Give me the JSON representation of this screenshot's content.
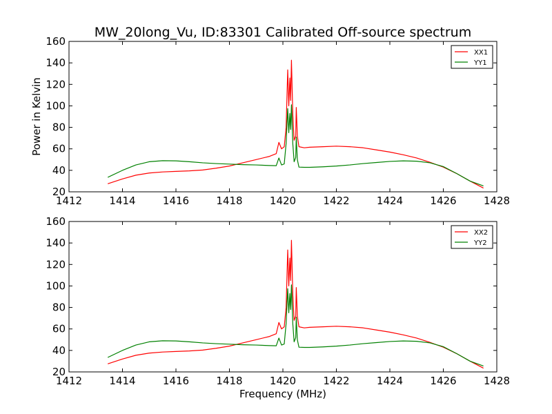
{
  "figure": {
    "title": "MW_20long_Vu, ID:83301 Calibrated Off-source spectrum"
  },
  "chart_data": [
    {
      "type": "line",
      "title": "MW_20long_Vu, ID:83301 Calibrated Off-source spectrum",
      "xlabel": "",
      "ylabel": "Power in Kelvin",
      "xlim": [
        1412,
        1428
      ],
      "ylim": [
        20,
        160
      ],
      "xticks": [
        1412,
        1414,
        1416,
        1418,
        1420,
        1422,
        1424,
        1426,
        1428
      ],
      "yticks": [
        20,
        40,
        60,
        80,
        100,
        120,
        140,
        160
      ],
      "grid": false,
      "legend": "top-right",
      "series": [
        {
          "name": "XX1",
          "color": "#ff0000",
          "points": [
            [
              1413.45,
              27.5
            ],
            [
              1414,
              32
            ],
            [
              1414.5,
              35.5
            ],
            [
              1415,
              37.5
            ],
            [
              1415.5,
              38.5
            ],
            [
              1416,
              39
            ],
            [
              1416.5,
              39.5
            ],
            [
              1417,
              40.3
            ],
            [
              1417.5,
              42
            ],
            [
              1418,
              44
            ],
            [
              1418.5,
              47
            ],
            [
              1419,
              50
            ],
            [
              1419.5,
              53
            ],
            [
              1419.75,
              55.5
            ],
            [
              1419.85,
              66
            ],
            [
              1419.95,
              60
            ],
            [
              1420.05,
              62
            ],
            [
              1420.12,
              80
            ],
            [
              1420.18,
              133.5
            ],
            [
              1420.22,
              100
            ],
            [
              1420.26,
              126
            ],
            [
              1420.29,
              105
            ],
            [
              1420.32,
              142.5
            ],
            [
              1420.37,
              92
            ],
            [
              1420.42,
              68
            ],
            [
              1420.48,
              72
            ],
            [
              1420.5,
              98.5
            ],
            [
              1420.54,
              72
            ],
            [
              1420.6,
              62
            ],
            [
              1420.8,
              61
            ],
            [
              1421,
              61.5
            ],
            [
              1421.5,
              62
            ],
            [
              1422,
              62.5
            ],
            [
              1422.5,
              62
            ],
            [
              1423,
              61
            ],
            [
              1423.5,
              59
            ],
            [
              1424,
              57
            ],
            [
              1424.5,
              54.5
            ],
            [
              1425,
              51.5
            ],
            [
              1425.5,
              47.5
            ],
            [
              1426,
              43
            ],
            [
              1426.5,
              37
            ],
            [
              1427,
              30
            ],
            [
              1427.5,
              23.5
            ]
          ]
        },
        {
          "name": "YY1",
          "color": "#008000",
          "points": [
            [
              1413.45,
              33.5
            ],
            [
              1414,
              40
            ],
            [
              1414.5,
              45
            ],
            [
              1415,
              48
            ],
            [
              1415.5,
              49
            ],
            [
              1416,
              48.8
            ],
            [
              1416.5,
              48
            ],
            [
              1417,
              47
            ],
            [
              1417.5,
              46.3
            ],
            [
              1418,
              45.8
            ],
            [
              1418.5,
              45.3
            ],
            [
              1419,
              45
            ],
            [
              1419.5,
              44.5
            ],
            [
              1419.75,
              44.3
            ],
            [
              1419.85,
              51.5
            ],
            [
              1419.95,
              45
            ],
            [
              1420.05,
              46
            ],
            [
              1420.12,
              65
            ],
            [
              1420.18,
              97.5
            ],
            [
              1420.22,
              75
            ],
            [
              1420.26,
              93
            ],
            [
              1420.29,
              78
            ],
            [
              1420.32,
              101
            ],
            [
              1420.37,
              65
            ],
            [
              1420.42,
              48
            ],
            [
              1420.48,
              52
            ],
            [
              1420.5,
              71
            ],
            [
              1420.54,
              50
            ],
            [
              1420.6,
              43
            ],
            [
              1420.8,
              42.8
            ],
            [
              1421,
              42.8
            ],
            [
              1421.5,
              43.3
            ],
            [
              1422,
              44
            ],
            [
              1422.5,
              45
            ],
            [
              1423,
              46.3
            ],
            [
              1423.5,
              47.3
            ],
            [
              1424,
              48.3
            ],
            [
              1424.5,
              48.8
            ],
            [
              1425,
              48.5
            ],
            [
              1425.5,
              47
            ],
            [
              1426,
              43.5
            ],
            [
              1426.5,
              37
            ],
            [
              1427,
              30
            ],
            [
              1427.5,
              25.5
            ]
          ]
        }
      ]
    },
    {
      "type": "line",
      "title": "",
      "xlabel": "Frequency (MHz)",
      "ylabel": "",
      "xlim": [
        1412,
        1428
      ],
      "ylim": [
        20,
        160
      ],
      "xticks": [
        1412,
        1414,
        1416,
        1418,
        1420,
        1422,
        1424,
        1426,
        1428
      ],
      "yticks": [
        20,
        40,
        60,
        80,
        100,
        120,
        140,
        160
      ],
      "grid": false,
      "legend": "top-right",
      "series": [
        {
          "name": "XX2",
          "color": "#ff0000",
          "points": [
            [
              1413.45,
              27.5
            ],
            [
              1414,
              32
            ],
            [
              1414.5,
              35.5
            ],
            [
              1415,
              37.5
            ],
            [
              1415.5,
              38.5
            ],
            [
              1416,
              39
            ],
            [
              1416.5,
              39.5
            ],
            [
              1417,
              40.3
            ],
            [
              1417.5,
              42
            ],
            [
              1418,
              44
            ],
            [
              1418.5,
              47
            ],
            [
              1419,
              50
            ],
            [
              1419.5,
              53
            ],
            [
              1419.75,
              55.5
            ],
            [
              1419.85,
              66
            ],
            [
              1419.95,
              60
            ],
            [
              1420.05,
              62
            ],
            [
              1420.12,
              80
            ],
            [
              1420.18,
              133.5
            ],
            [
              1420.22,
              100
            ],
            [
              1420.26,
              126
            ],
            [
              1420.29,
              105
            ],
            [
              1420.32,
              142.5
            ],
            [
              1420.37,
              92
            ],
            [
              1420.42,
              68
            ],
            [
              1420.48,
              72
            ],
            [
              1420.5,
              98.5
            ],
            [
              1420.54,
              72
            ],
            [
              1420.6,
              62
            ],
            [
              1420.8,
              61
            ],
            [
              1421,
              61.5
            ],
            [
              1421.5,
              62
            ],
            [
              1422,
              62.5
            ],
            [
              1422.5,
              62
            ],
            [
              1423,
              61
            ],
            [
              1423.5,
              59
            ],
            [
              1424,
              57
            ],
            [
              1424.5,
              54.5
            ],
            [
              1425,
              51.5
            ],
            [
              1425.5,
              47.5
            ],
            [
              1426,
              43
            ],
            [
              1426.5,
              37
            ],
            [
              1427,
              30
            ],
            [
              1427.5,
              23.5
            ]
          ]
        },
        {
          "name": "YY2",
          "color": "#008000",
          "points": [
            [
              1413.45,
              33.5
            ],
            [
              1414,
              40
            ],
            [
              1414.5,
              45
            ],
            [
              1415,
              48
            ],
            [
              1415.5,
              49
            ],
            [
              1416,
              48.8
            ],
            [
              1416.5,
              48
            ],
            [
              1417,
              47
            ],
            [
              1417.5,
              46.3
            ],
            [
              1418,
              45.8
            ],
            [
              1418.5,
              45.3
            ],
            [
              1419,
              45
            ],
            [
              1419.5,
              44.5
            ],
            [
              1419.75,
              44.3
            ],
            [
              1419.85,
              51.5
            ],
            [
              1419.95,
              45
            ],
            [
              1420.05,
              46
            ],
            [
              1420.12,
              65
            ],
            [
              1420.18,
              97.5
            ],
            [
              1420.22,
              75
            ],
            [
              1420.26,
              93
            ],
            [
              1420.29,
              78
            ],
            [
              1420.32,
              101
            ],
            [
              1420.37,
              65
            ],
            [
              1420.42,
              48
            ],
            [
              1420.48,
              52
            ],
            [
              1420.5,
              71
            ],
            [
              1420.54,
              50
            ],
            [
              1420.6,
              43
            ],
            [
              1420.8,
              42.8
            ],
            [
              1421,
              42.8
            ],
            [
              1421.5,
              43.3
            ],
            [
              1422,
              44
            ],
            [
              1422.5,
              45
            ],
            [
              1423,
              46.3
            ],
            [
              1423.5,
              47.3
            ],
            [
              1424,
              48.3
            ],
            [
              1424.5,
              48.8
            ],
            [
              1425,
              48.5
            ],
            [
              1425.5,
              47
            ],
            [
              1426,
              43.5
            ],
            [
              1426.5,
              37
            ],
            [
              1427,
              30
            ],
            [
              1427.5,
              25.5
            ]
          ]
        }
      ]
    }
  ]
}
